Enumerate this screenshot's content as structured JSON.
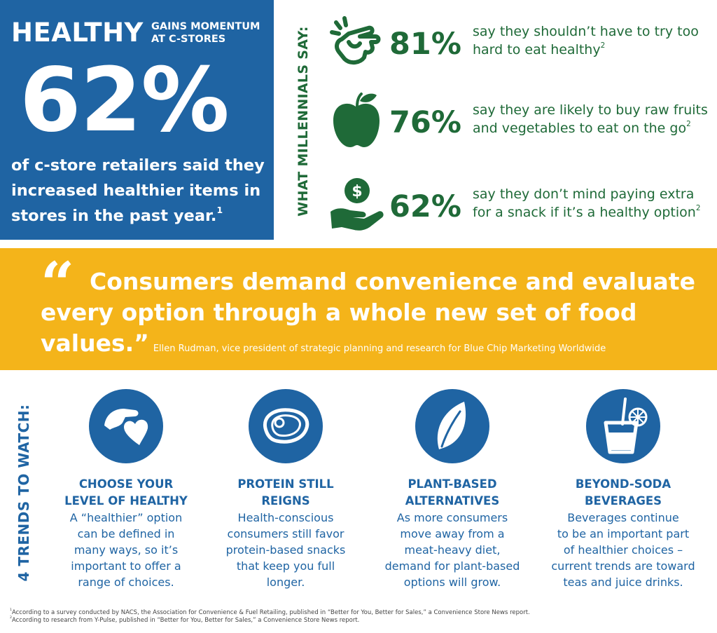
{
  "hero": {
    "headline_big": "HEALTHY",
    "headline_small": "GAINS MOMENTUM\nAT C-STORES",
    "percent": "62%",
    "description": "of c-store retailers said they increased healthier items in stores in the past year.",
    "description_ref": "1"
  },
  "millennials": {
    "label": "WHAT MILLENNIALS SAY:",
    "stats": [
      {
        "icon": "pinch-hand-icon",
        "percent": "81%",
        "text": "say they shouldn’t have to try too hard to eat healthy",
        "ref": "2"
      },
      {
        "icon": "apple-icon",
        "percent": "76%",
        "text": "say they are likely to buy raw fruits and vegetables to eat on the go",
        "ref": "2"
      },
      {
        "icon": "hand-holding-dollar-icon",
        "percent": "62%",
        "text": "say they don’t mind paying extra for a snack if it’s a healthy option",
        "ref": "2"
      }
    ]
  },
  "quote": {
    "mark": "“",
    "line1": "Consumers demand convenience and evaluate",
    "line2": "every option through a whole new set of food",
    "line3": "values.”",
    "attribution": "Ellen Rudman, vice president of strategic planning and research for Blue Chip Marketing Worldwide"
  },
  "trends": {
    "label": "4 TRENDS TO WATCH:",
    "items": [
      {
        "icon": "hand-heart-icon",
        "title": "CHOOSE YOUR\nLEVEL OF HEALTHY",
        "body": "A “healthier” option\ncan be defined in\nmany ways, so it’s\nimportant to offer a\nrange of choices."
      },
      {
        "icon": "steak-icon",
        "title": "PROTEIN STILL\nREIGNS",
        "body": "Health-conscious\nconsumers still favor\nprotein-based snacks\nthat keep you full\nlonger."
      },
      {
        "icon": "leaf-icon",
        "title": "PLANT-BASED\nALTERNATIVES",
        "body": "As more consumers\nmove away from a\nmeat-heavy diet,\ndemand for plant-based\noptions will grow."
      },
      {
        "icon": "drink-cup-icon",
        "title": "BEYOND-SODA\nBEVERAGES",
        "body": "Beverages continue\nto be an important part\nof healthier choices –\ncurrent trends are toward\nteas and juice drinks."
      }
    ]
  },
  "footnotes": {
    "note1_ref": "1",
    "note1": "According to a survey conducted by NACS, the Association for Convenience & Fuel Retailing, published in “Better for You, Better for Sales,” a Convenience Store News report.",
    "note2_ref": "2",
    "note2": "According to research from Y-Pulse, published in “Better for You, Better for Sales,” a Convenience Store News report."
  },
  "colors": {
    "blue": "#1f64a3",
    "green": "#1f6a38",
    "gold": "#f4b41a"
  }
}
